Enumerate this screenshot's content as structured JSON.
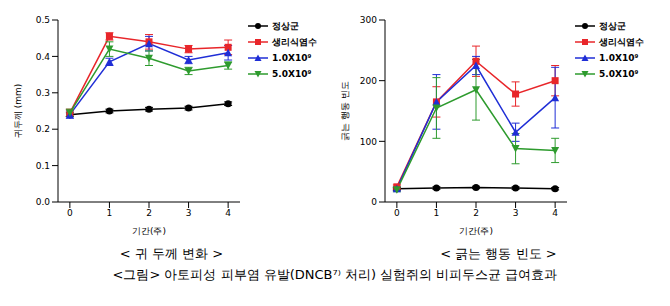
{
  "figure_caption": "<그림> 아토피성 피부염 유발(DNCB⁷⁾ 처리) 실험쥐의 비피두스균 급여효과",
  "chart_data": [
    {
      "type": "line",
      "title": "< 귀 두께 변화 >",
      "x_label": "기간(주)",
      "y_label": "귀두께 (mm)",
      "x": [
        0,
        1,
        2,
        3,
        4
      ],
      "xlim": [
        -0.3,
        4.3
      ],
      "xticks": [
        0,
        1,
        2,
        3,
        4
      ],
      "ylim": [
        0,
        0.5
      ],
      "yticks": [
        {
          "value": 0,
          "label": "0.0"
        },
        0.1,
        0.2,
        0.3,
        0.4,
        0.5
      ],
      "grid": false,
      "legend": "upper right",
      "series": [
        {
          "name": "정상군",
          "color": "#000000",
          "marker": "circle",
          "values": [
            0.24,
            0.25,
            0.255,
            0.258,
            0.27
          ],
          "errors": [
            0.005,
            0.005,
            0.005,
            0.005,
            0.005
          ]
        },
        {
          "name": "생리식염수",
          "color": "#e8262a",
          "marker": "square",
          "values": [
            0.245,
            0.455,
            0.44,
            0.42,
            0.425
          ],
          "errors": [
            0.01,
            0.01,
            0.02,
            0.01,
            0.02
          ]
        },
        {
          "name": "1.0X10⁹",
          "color": "#1f2ed6",
          "marker": "triangle",
          "values": [
            0.24,
            0.385,
            0.435,
            0.39,
            0.41
          ],
          "errors": [
            0.01,
            0.01,
            0.02,
            0.01,
            0.02
          ]
        },
        {
          "name": "5.0X10⁹",
          "color": "#2e9b2e",
          "marker": "triangle-down",
          "values": [
            0.245,
            0.42,
            0.395,
            0.36,
            0.375
          ],
          "errors": [
            0.01,
            0.02,
            0.02,
            0.01,
            0.01
          ]
        }
      ]
    },
    {
      "type": "line",
      "title": "< 긁는 행동 빈도 >",
      "x_label": "기간(주)",
      "y_label": "긁는 행동 빈도",
      "x": [
        0,
        1,
        2,
        3,
        4
      ],
      "xlim": [
        -0.3,
        4.3
      ],
      "xticks": [
        0,
        1,
        2,
        3,
        4
      ],
      "ylim": [
        0,
        300
      ],
      "yticks": [
        0,
        100,
        200,
        300
      ],
      "grid": false,
      "legend": "upper right",
      "series": [
        {
          "name": "정상군",
          "color": "#000000",
          "marker": "circle",
          "values": [
            22,
            23,
            24,
            23,
            22
          ],
          "errors": [
            2,
            2,
            2,
            2,
            2
          ]
        },
        {
          "name": "생리식염수",
          "color": "#e8262a",
          "marker": "square",
          "values": [
            25,
            165,
            232,
            178,
            200
          ],
          "errors": [
            3,
            25,
            25,
            20,
            25
          ]
        },
        {
          "name": "1.0X10⁹",
          "color": "#1f2ed6",
          "marker": "triangle",
          "values": [
            22,
            165,
            225,
            115,
            172
          ],
          "errors": [
            3,
            45,
            15,
            15,
            50
          ]
        },
        {
          "name": "5.0X10⁹",
          "color": "#2e9b2e",
          "marker": "triangle-down",
          "values": [
            20,
            155,
            185,
            88,
            85
          ],
          "errors": [
            3,
            50,
            50,
            25,
            20
          ]
        }
      ]
    }
  ]
}
